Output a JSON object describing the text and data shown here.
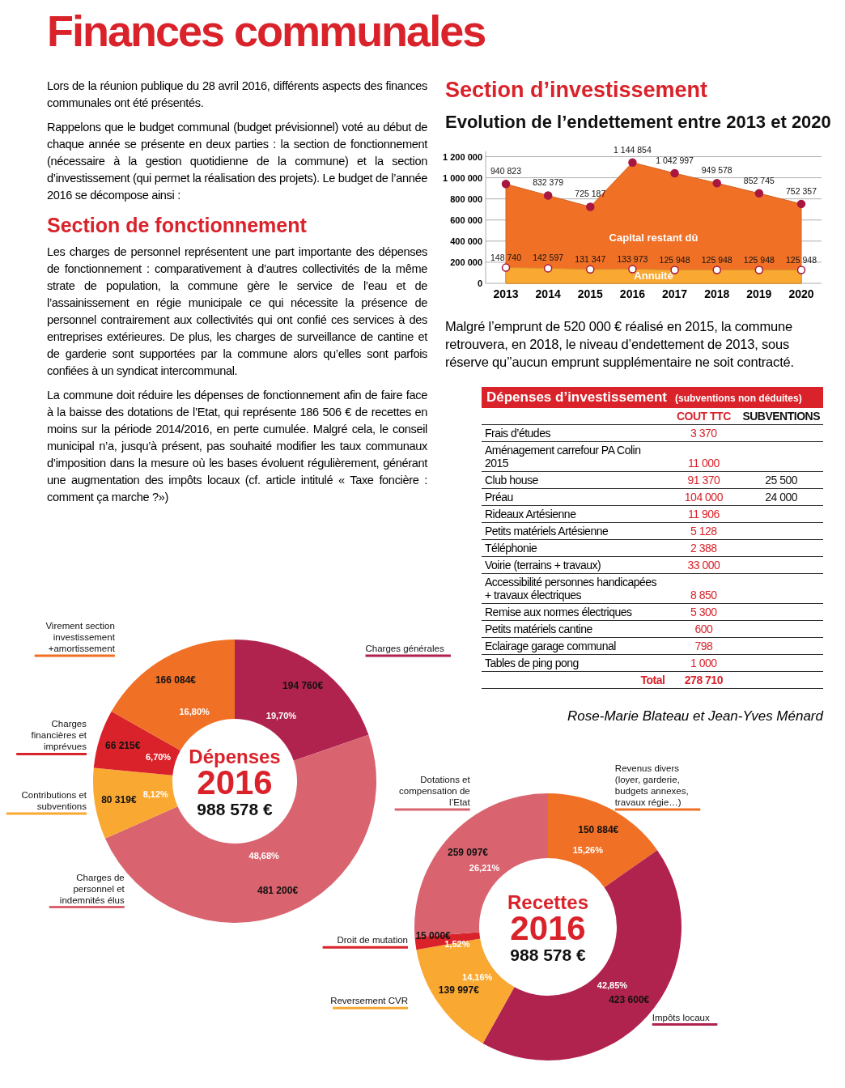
{
  "chart_data": [
    {
      "type": "other",
      "title": "Finances communales",
      "subtitle": "Section de fonctionnement",
      "annotations": [
        "Lors de la réunion publique du 28 avril 2016, différents aspects des finances communales ont été présentés.",
        "Rappelons que le budget communal (budget prévisionnel) voté au début de chaque année se présente en deux parties : la section de fonctionnement (nécessaire à la gestion quotidienne de la commune) et la section d’investissement (qui permet la réalisation des projets). Le budget de l’année 2016 se décompose ainsi :",
        "Les charges de personnel représentent une part importante des dépenses de fonctionnement : comparativement à d’autres collectivités de la même strate de population, la commune gère le service de l’eau et de l’assainissement en régie municipale ce qui nécessite la présence de personnel contrairement aux collectivités qui ont confié ces services à des entreprises extérieures. De plus, les charges de surveillance de cantine et de garderie sont supportées par la commune alors qu’elles sont parfois confiées à un syndicat intercommunal.",
        "La commune doit réduire les dépenses de fonctionnement afin de faire face à la baisse des dotations de l’Etat, qui représente 186 506 € de recettes en moins sur la période 2014/2016, en perte cumulée. Malgré cela, le conseil municipal n’a, jusqu’à présent, pas souhaité modifier les taux communaux d’imposition dans la mesure où les bases évoluent régulièrement, générant une augmentation des impôts locaux (cf. article intitulé « Taxe foncière : comment ça marche ?»)"
      ]
    },
    {
      "type": "area",
      "title": "Section d’investissement",
      "subtitle": "Evolution de l’endettement entre 2013 et 2020",
      "categories": [
        "2013",
        "2014",
        "2015",
        "2016",
        "2017",
        "2018",
        "2019",
        "2020"
      ],
      "series": [
        {
          "name": "Capital restant dû",
          "color": "#f07026",
          "values": [
            940823,
            832379,
            725187,
            1144854,
            1042997,
            949578,
            852745,
            752357
          ],
          "value_labels": [
            "940 823",
            "832 379",
            "725 187",
            "1 144 854",
            "1 042 997",
            "949 578",
            "852 745",
            "752 357"
          ]
        },
        {
          "name": "Annuité",
          "color": "#f9a832",
          "values": [
            148740,
            142597,
            131347,
            133973,
            125948,
            125948,
            125948,
            125948
          ],
          "value_labels": [
            "148 740",
            "142 597",
            "131 347",
            "133 973",
            "125 948",
            "125 948",
            "125 948",
            "125 948"
          ]
        }
      ],
      "ylim": [
        0,
        1250000
      ],
      "yticks": [
        0,
        {
          "value": 200000,
          "label": "200 000"
        },
        {
          "value": 400000,
          "label": "400 000"
        },
        {
          "value": 600000,
          "label": "600 000"
        },
        {
          "value": 800000,
          "label": "800 000"
        },
        {
          "value": 1000000,
          "label": "1 000 000"
        },
        {
          "value": 1200000,
          "label": "1 200 000"
        }
      ],
      "grid": "y",
      "marker": "circle",
      "annotations": [
        "Malgré l’emprunt de 520 000 € réalisé en 2015, la commune retrouvera, en 2018, le niveau d’endettement de 2013, sous réserve qu’’aucun emprunt supplémentaire ne soit contracté."
      ]
    },
    {
      "type": "other",
      "title": "Dépenses d’investissement",
      "subtitle": "(subventions non déduites)",
      "categories": [
        "Frais d’études",
        "Aménagement carrefour PA Colin 2015",
        "Club house",
        "Préau",
        "Rideaux Artésienne",
        "Petits matériels Artésienne",
        "Téléphonie",
        "Voirie (terrains + travaux)",
        "Accessibilité personnes handicapées + travaux électriques",
        "Remise aux normes électriques",
        "Petits matériels cantine",
        "Eclairage garage communal",
        "Tables de ping pong"
      ],
      "series": [
        {
          "name": "COUT TTC",
          "values": [
            3370,
            11000,
            91370,
            104000,
            11906,
            5128,
            2388,
            33000,
            8850,
            5300,
            600,
            798,
            1000
          ],
          "value_labels": [
            "3 370",
            "11 000",
            "91 370",
            "104 000",
            "11 906",
            "5 128",
            "2 388",
            "33 000",
            "8 850",
            "5 300",
            "600",
            "798",
            "1 000"
          ]
        },
        {
          "name": "SUBVENTIONS",
          "values": [
            null,
            null,
            25500,
            24000,
            null,
            null,
            null,
            null,
            null,
            null,
            null,
            null,
            null
          ],
          "value_labels": [
            null,
            null,
            "25 500",
            "24 000",
            null,
            null,
            null,
            null,
            null,
            null,
            null,
            null,
            null
          ]
        }
      ],
      "totals": [
        "278 710"
      ],
      "annotations": [
        "Total",
        "Rose-Marie Blateau et Jean-Yves Ménard"
      ]
    },
    {
      "type": "donut",
      "title": "Dépenses",
      "subtitle": "2016",
      "totals": [
        "988 578 €"
      ],
      "categories": [
        "Charges générales",
        "Charges de personnel et indemnités élus",
        "Contributions et subventions",
        "Charges financières et imprévues",
        "Virement section investissement +amortissement"
      ],
      "values": [
        194760,
        481200,
        80319,
        66215,
        166084
      ],
      "colors": [
        "#b0234e",
        "#d9646f",
        "#f9a832",
        "#d9222a",
        "#f07026"
      ],
      "value_labels": [
        "194 760€",
        "481 200€",
        "80 319€",
        "66 215€",
        "166 084€"
      ],
      "annotations": [
        "19,70%",
        "48,68%",
        "8,12%",
        "6,70%",
        "16,80%"
      ]
    },
    {
      "type": "donut",
      "title": "Recettes",
      "subtitle": "2016",
      "totals": [
        "988 578 €"
      ],
      "categories": [
        "Revenus divers (loyer, garderie, budgets annexes, travaux régie…)",
        "Impôts locaux",
        "Reversement CVR",
        "Droit de mutation",
        "Dotations et compensation de l’Etat"
      ],
      "values": [
        150884,
        423600,
        139997,
        15000,
        259097
      ],
      "colors": [
        "#f07026",
        "#b0234e",
        "#f9a832",
        "#d9222a",
        "#d9646f"
      ],
      "value_labels": [
        "150 884€",
        "423 600€",
        "139 997€",
        "15 000€",
        "259 097€"
      ],
      "annotations": [
        "15,26%",
        "42,85%",
        "14,16%",
        "1,52%",
        "26,21%"
      ]
    }
  ]
}
